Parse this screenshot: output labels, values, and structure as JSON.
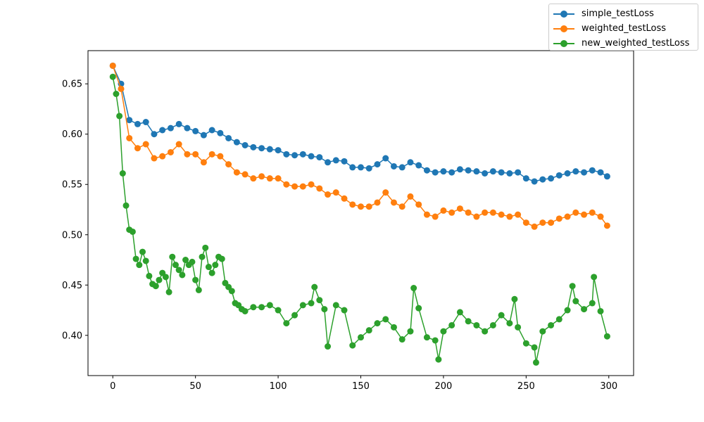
{
  "chart_data": {
    "type": "line",
    "title": "",
    "xlabel": "",
    "ylabel": "",
    "xlim": [
      -15,
      315
    ],
    "ylim": [
      0.36,
      0.683
    ],
    "x_ticks": [
      0,
      50,
      100,
      150,
      200,
      250,
      300
    ],
    "x_tick_labels": [
      "0",
      "50",
      "100",
      "150",
      "200",
      "250",
      "300"
    ],
    "y_ticks": [
      0.4,
      0.45,
      0.5,
      0.55,
      0.6,
      0.65
    ],
    "y_tick_labels": [
      "0.40",
      "0.45",
      "0.50",
      "0.55",
      "0.60",
      "0.65"
    ],
    "grid": false,
    "legend_position": "upper-right-outside",
    "markers": "circle",
    "series": [
      {
        "name": "simple_testLoss",
        "color": "#1f77b4",
        "x": [
          0,
          5,
          10,
          15,
          20,
          25,
          30,
          35,
          40,
          45,
          50,
          55,
          60,
          65,
          70,
          75,
          80,
          85,
          90,
          95,
          100,
          105,
          110,
          115,
          120,
          125,
          130,
          135,
          140,
          145,
          150,
          155,
          160,
          165,
          170,
          175,
          180,
          185,
          190,
          195,
          200,
          205,
          210,
          215,
          220,
          225,
          230,
          235,
          240,
          245,
          250,
          255,
          260,
          265,
          270,
          275,
          280,
          285,
          290,
          295,
          299
        ],
        "y": [
          0.668,
          0.65,
          0.614,
          0.61,
          0.612,
          0.6,
          0.604,
          0.606,
          0.61,
          0.606,
          0.603,
          0.599,
          0.604,
          0.601,
          0.596,
          0.592,
          0.589,
          0.587,
          0.586,
          0.585,
          0.584,
          0.58,
          0.579,
          0.58,
          0.578,
          0.577,
          0.572,
          0.574,
          0.573,
          0.567,
          0.567,
          0.566,
          0.57,
          0.576,
          0.568,
          0.567,
          0.572,
          0.569,
          0.564,
          0.562,
          0.563,
          0.562,
          0.565,
          0.564,
          0.563,
          0.561,
          0.563,
          0.562,
          0.561,
          0.562,
          0.556,
          0.553,
          0.555,
          0.556,
          0.559,
          0.561,
          0.563,
          0.562,
          0.564,
          0.562,
          0.558
        ]
      },
      {
        "name": "weighted_testLoss",
        "color": "#ff7f0e",
        "x": [
          0,
          5,
          10,
          15,
          20,
          25,
          30,
          35,
          40,
          45,
          50,
          55,
          60,
          65,
          70,
          75,
          80,
          85,
          90,
          95,
          100,
          105,
          110,
          115,
          120,
          125,
          130,
          135,
          140,
          145,
          150,
          155,
          160,
          165,
          170,
          175,
          180,
          185,
          190,
          195,
          200,
          205,
          210,
          215,
          220,
          225,
          230,
          235,
          240,
          245,
          250,
          255,
          260,
          265,
          270,
          275,
          280,
          285,
          290,
          295,
          299
        ],
        "y": [
          0.668,
          0.645,
          0.596,
          0.586,
          0.59,
          0.576,
          0.578,
          0.582,
          0.59,
          0.58,
          0.58,
          0.572,
          0.58,
          0.578,
          0.57,
          0.562,
          0.56,
          0.556,
          0.558,
          0.556,
          0.556,
          0.55,
          0.548,
          0.548,
          0.55,
          0.546,
          0.54,
          0.542,
          0.536,
          0.53,
          0.528,
          0.528,
          0.532,
          0.542,
          0.532,
          0.528,
          0.538,
          0.53,
          0.52,
          0.518,
          0.524,
          0.522,
          0.526,
          0.522,
          0.518,
          0.522,
          0.522,
          0.52,
          0.518,
          0.52,
          0.512,
          0.508,
          0.512,
          0.512,
          0.516,
          0.518,
          0.522,
          0.52,
          0.522,
          0.518,
          0.509
        ]
      },
      {
        "name": "new_weighted_testLoss",
        "color": "#2ca02c",
        "x": [
          0,
          2,
          4,
          6,
          8,
          10,
          12,
          14,
          16,
          18,
          20,
          22,
          24,
          26,
          28,
          30,
          32,
          34,
          36,
          38,
          40,
          42,
          44,
          46,
          48,
          50,
          52,
          54,
          56,
          58,
          60,
          62,
          64,
          66,
          68,
          70,
          72,
          74,
          76,
          78,
          80,
          85,
          90,
          95,
          100,
          105,
          110,
          115,
          120,
          122,
          125,
          128,
          130,
          135,
          140,
          145,
          150,
          155,
          160,
          165,
          170,
          175,
          180,
          182,
          185,
          190,
          195,
          197,
          200,
          205,
          210,
          215,
          220,
          225,
          230,
          235,
          240,
          243,
          245,
          250,
          255,
          256,
          260,
          265,
          270,
          275,
          278,
          280,
          285,
          290,
          291,
          295,
          299
        ],
        "y": [
          0.657,
          0.64,
          0.618,
          0.561,
          0.529,
          0.505,
          0.503,
          0.476,
          0.47,
          0.483,
          0.474,
          0.459,
          0.451,
          0.449,
          0.455,
          0.462,
          0.458,
          0.443,
          0.478,
          0.47,
          0.465,
          0.46,
          0.475,
          0.47,
          0.473,
          0.455,
          0.445,
          0.478,
          0.487,
          0.468,
          0.462,
          0.47,
          0.478,
          0.476,
          0.452,
          0.448,
          0.444,
          0.432,
          0.43,
          0.426,
          0.424,
          0.428,
          0.428,
          0.43,
          0.425,
          0.412,
          0.42,
          0.43,
          0.432,
          0.448,
          0.435,
          0.426,
          0.389,
          0.43,
          0.425,
          0.39,
          0.398,
          0.405,
          0.412,
          0.416,
          0.408,
          0.396,
          0.404,
          0.447,
          0.427,
          0.398,
          0.395,
          0.376,
          0.404,
          0.41,
          0.423,
          0.414,
          0.41,
          0.404,
          0.41,
          0.42,
          0.412,
          0.436,
          0.408,
          0.392,
          0.388,
          0.373,
          0.404,
          0.41,
          0.416,
          0.425,
          0.449,
          0.434,
          0.426,
          0.432,
          0.458,
          0.424,
          0.399
        ]
      }
    ]
  }
}
